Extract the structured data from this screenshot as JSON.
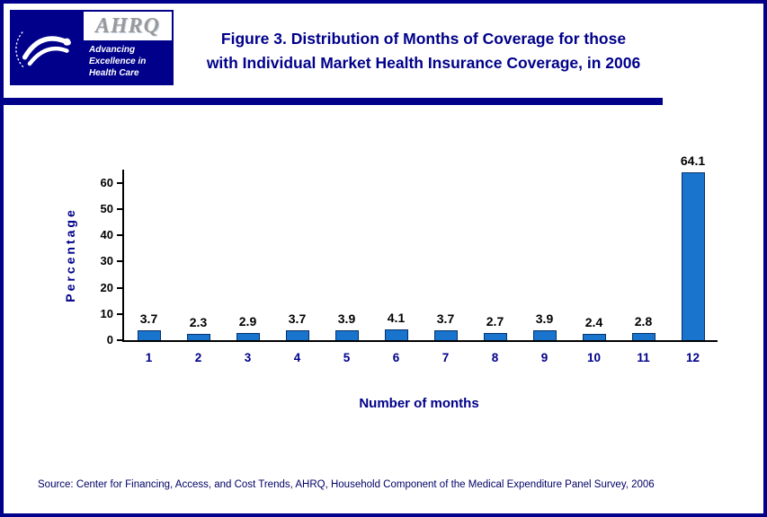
{
  "header": {
    "logos": {
      "ahrq_acronym": "AHRQ",
      "ahrq_tagline": [
        "Advancing",
        "Excellence in",
        "Health Care"
      ]
    },
    "title_lines": [
      "Figure 3. Distribution of Months of Coverage for those",
      "with Individual Market Health Insurance Coverage, in 2006"
    ]
  },
  "chart_data": {
    "type": "bar",
    "title": "Figure 3. Distribution of Months of Coverage for those with Individual Market Health Insurance Coverage, in 2006",
    "categories": [
      "1",
      "2",
      "3",
      "4",
      "5",
      "6",
      "7",
      "8",
      "9",
      "10",
      "11",
      "12"
    ],
    "values": [
      3.7,
      2.3,
      2.9,
      3.7,
      3.9,
      4.1,
      3.7,
      2.7,
      3.9,
      2.4,
      2.8,
      64.1
    ],
    "value_labels": [
      "3.7",
      "2.3",
      "2.9",
      "3.7",
      "3.9",
      "4.1",
      "3.7",
      "2.7",
      "3.9",
      "2.4",
      "2.8",
      "64.1"
    ],
    "xlabel": "Number of months",
    "ylabel": "Percentage",
    "ylim": [
      0,
      65
    ],
    "yticks": [
      0,
      10,
      20,
      30,
      40,
      50,
      60
    ],
    "grid": false,
    "legend": false,
    "bar_color": "#1874CD",
    "bar_border_color": "#06306b"
  },
  "footer": {
    "source": "Source: Center for Financing, Access, and Cost Trends, AHRQ, Household Component of the Medical Expenditure Panel Survey, 2006"
  },
  "colors": {
    "navy": "#00008B",
    "axis_text": "#000000"
  }
}
